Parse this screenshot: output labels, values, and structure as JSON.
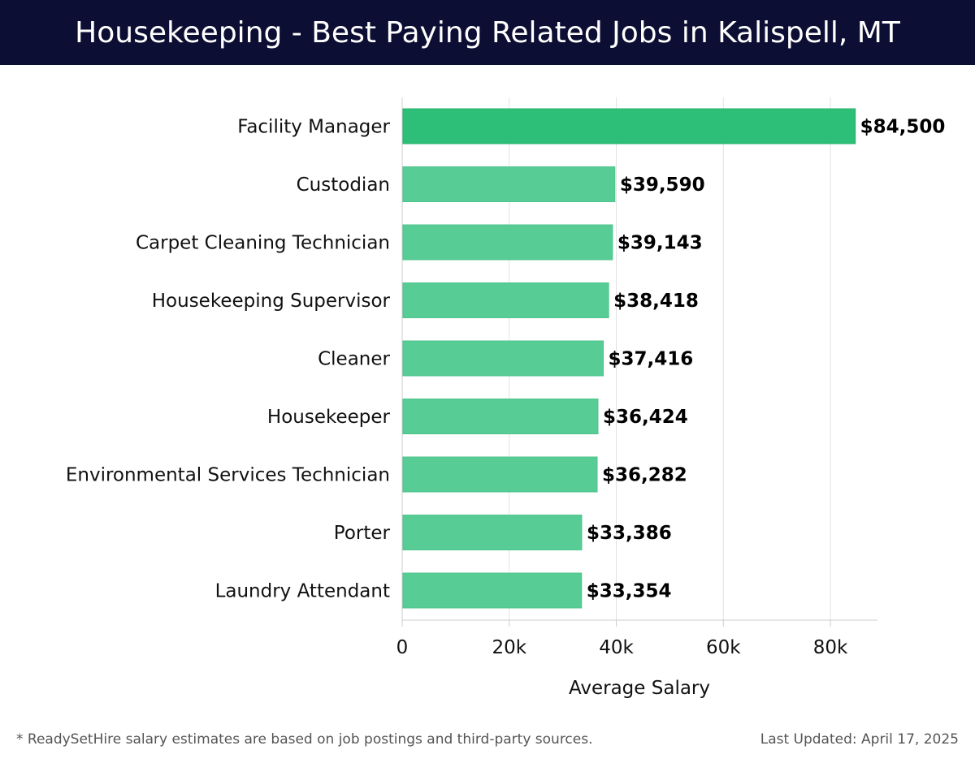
{
  "header": {
    "title": "Housekeeping - Best Paying Related Jobs in Kalispell, MT"
  },
  "chart_data": {
    "type": "bar",
    "orientation": "horizontal",
    "title": "Housekeeping - Best Paying Related Jobs in Kalispell, MT",
    "xlabel": "Average Salary",
    "ylabel": "",
    "xlim": [
      0,
      88800
    ],
    "x_ticks": [
      0,
      20000,
      40000,
      60000,
      80000
    ],
    "x_tick_labels": [
      "0",
      "20k",
      "40k",
      "60k",
      "80k"
    ],
    "grid": "vertical",
    "categories": [
      "Facility Manager",
      "Custodian",
      "Carpet Cleaning Technician",
      "Housekeeping Supervisor",
      "Cleaner",
      "Housekeeper",
      "Environmental Services Technician",
      "Porter",
      "Laundry Attendant"
    ],
    "values": [
      84500,
      39590,
      39143,
      38418,
      37416,
      36424,
      36282,
      33386,
      33354
    ],
    "value_labels": [
      "$84,500",
      "$39,590",
      "$39,143",
      "$38,418",
      "$37,416",
      "$36,424",
      "$36,282",
      "$33,386",
      "$33,354"
    ],
    "colors": {
      "highlight": "#2dbf78",
      "bar": "#57cc95",
      "grid": "#e2e2e2",
      "axis": "#cccccc"
    }
  },
  "footer": {
    "note": "* ReadySetHire salary estimates are based on job postings and third-party sources.",
    "updated": "Last Updated: April 17, 2025"
  }
}
